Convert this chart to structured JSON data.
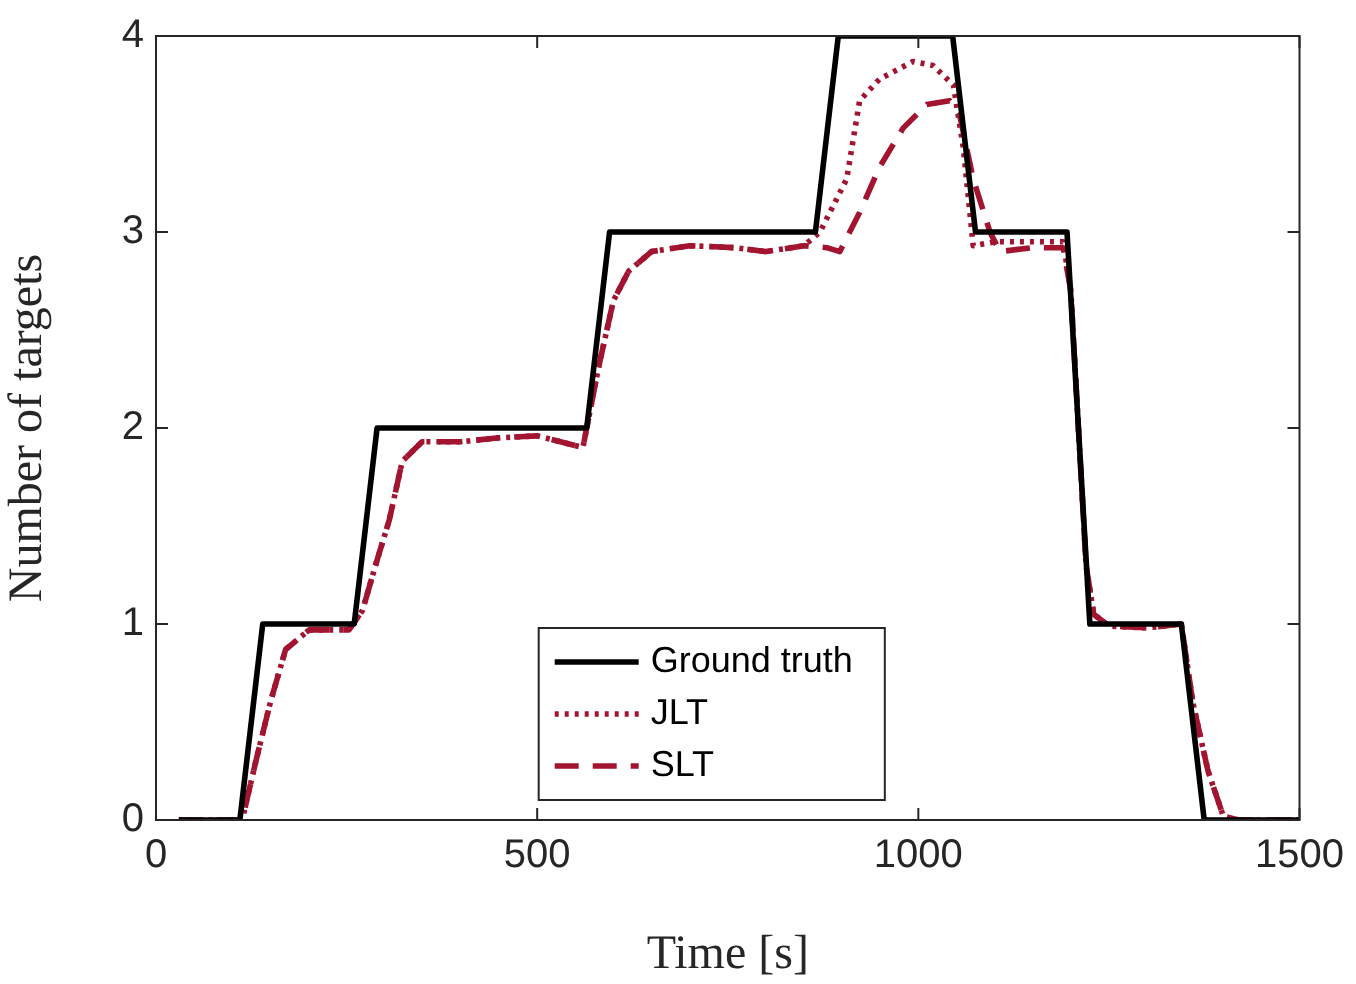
{
  "chart_data": {
    "type": "line",
    "xlabel": "Time [s]",
    "ylabel": "Number of targets",
    "xlim": [
      0,
      1500
    ],
    "xticks": [
      0,
      500,
      1000,
      1500
    ],
    "ylim": [
      0,
      4
    ],
    "yticks": [
      0,
      1,
      2,
      3,
      4
    ],
    "grid": false,
    "legend": "bottom",
    "marker": "none",
    "series": [
      {
        "name": "Ground truth",
        "color": "#000000",
        "line_style": "solid",
        "x": [
          30,
          110,
          140,
          260,
          290,
          565,
          595,
          865,
          895,
          1045,
          1075,
          1195,
          1225,
          1345,
          1375,
          1500
        ],
        "values": [
          0,
          0,
          1,
          1,
          2,
          2,
          3,
          3,
          4,
          4,
          3,
          3,
          1,
          1,
          0,
          0
        ]
      },
      {
        "name": "JLT",
        "color": "#a2142f",
        "line_style": "dotted",
        "x": [
          30,
          113,
          131,
          150,
          170,
          201,
          253,
          271,
          288,
          306,
          323,
          349,
          400,
          450,
          500,
          560,
          580,
          600,
          620,
          650,
          700,
          760,
          800,
          850,
          871,
          906,
          923,
          949,
          993,
          1019,
          1046,
          1059,
          1072,
          1100,
          1150,
          1190,
          1200,
          1210,
          1220,
          1230,
          1250,
          1300,
          1345,
          1360,
          1380,
          1400,
          1420,
          1500
        ],
        "values": [
          0,
          0,
          0.3,
          0.6,
          0.87,
          0.97,
          0.97,
          1.07,
          1.3,
          1.53,
          1.83,
          1.93,
          1.93,
          1.95,
          1.96,
          1.9,
          2.3,
          2.65,
          2.8,
          2.9,
          2.93,
          2.92,
          2.9,
          2.93,
          3,
          3.27,
          3.67,
          3.78,
          3.87,
          3.85,
          3.75,
          3.43,
          2.93,
          2.95,
          2.95,
          2.95,
          2.7,
          2,
          1.3,
          1.05,
          0.99,
          0.98,
          1,
          0.6,
          0.25,
          0.02,
          0,
          0
        ]
      },
      {
        "name": "SLT",
        "color": "#a2142f",
        "line_style": "dashed",
        "x": [
          30,
          113,
          131,
          150,
          170,
          201,
          253,
          271,
          288,
          306,
          323,
          349,
          400,
          450,
          500,
          560,
          580,
          600,
          620,
          650,
          700,
          760,
          800,
          850,
          880,
          897,
          923,
          949,
          980,
          1011,
          1041,
          1054,
          1072,
          1094,
          1107,
          1150,
          1190,
          1200,
          1210,
          1220,
          1230,
          1250,
          1300,
          1345,
          1360,
          1380,
          1400,
          1420,
          1500
        ],
        "values": [
          0,
          0,
          0.3,
          0.6,
          0.87,
          0.97,
          0.97,
          1.07,
          1.3,
          1.53,
          1.83,
          1.93,
          1.93,
          1.95,
          1.96,
          1.9,
          2.3,
          2.65,
          2.8,
          2.9,
          2.93,
          2.92,
          2.9,
          2.93,
          2.92,
          2.9,
          3.1,
          3.33,
          3.53,
          3.65,
          3.67,
          3.6,
          3.27,
          3,
          2.9,
          2.92,
          2.92,
          2.7,
          2,
          1.3,
          1.05,
          0.99,
          0.98,
          1,
          0.6,
          0.25,
          0.02,
          0,
          0
        ]
      }
    ]
  }
}
